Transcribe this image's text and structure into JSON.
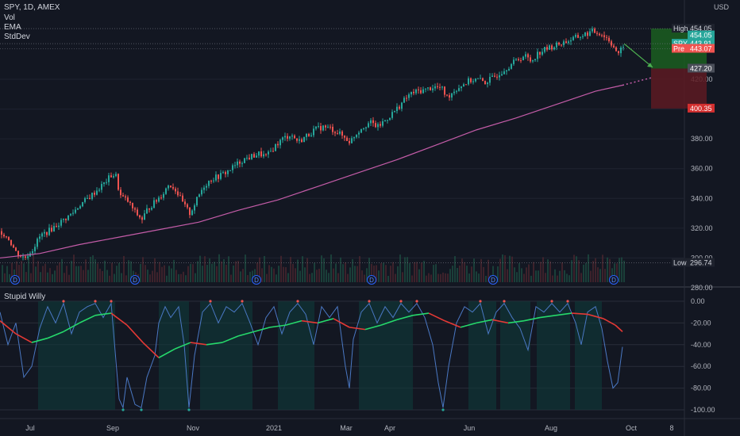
{
  "header": {
    "symbol_line": "SPY, 1D, AMEX",
    "indicators": [
      "Vol",
      "EMA",
      "StdDev"
    ],
    "currency": "USD"
  },
  "price_tags": [
    {
      "label": "High",
      "value": "454.05",
      "bg": "#1e222d",
      "fg": "#d1d4dc",
      "price": 454.05
    },
    {
      "label": "",
      "value": "454.05",
      "bg": "#26a69a",
      "fg": "#ffffff",
      "price": 449.5
    },
    {
      "label": "SPY",
      "value": "443.91",
      "bg": "#26a69a",
      "fg": "#ffffff",
      "price": 443.91
    },
    {
      "label": "Pre",
      "value": "443.07",
      "bg": "#ef5350",
      "fg": "#ffffff",
      "price": 440.5
    },
    {
      "label": "",
      "value": "427.20",
      "bg": "#4a4e59",
      "fg": "#ffffff",
      "price": 427.2
    },
    {
      "label": "",
      "value": "400.35",
      "bg": "#d32f2f",
      "fg": "#ffffff",
      "price": 400.35
    },
    {
      "label": "Low",
      "value": "296.74",
      "bg": "#1e222d",
      "fg": "#d1d4dc",
      "price": 296.74
    }
  ],
  "pane2_title": "Stupid Willy",
  "chart_data": [
    {
      "type": "line",
      "name": "price",
      "y_ticks": [
        "280.00",
        "300.00",
        "320.00",
        "340.00",
        "360.00",
        "380.00",
        "400.00",
        "420.00"
      ],
      "ylim": [
        280,
        460
      ],
      "x_labels": [
        "Jul",
        "Sep",
        "Nov",
        "2021",
        "Mar",
        "Apr",
        "Jun",
        "Aug",
        "Oct",
        "8"
      ],
      "close_path": [
        [
          0,
          318
        ],
        [
          10,
          313
        ],
        [
          20,
          303
        ],
        [
          30,
          300
        ],
        [
          40,
          306
        ],
        [
          50,
          315
        ],
        [
          60,
          318
        ],
        [
          70,
          322
        ],
        [
          80,
          326
        ],
        [
          90,
          330
        ],
        [
          100,
          336
        ],
        [
          110,
          340
        ],
        [
          120,
          345
        ],
        [
          130,
          350
        ],
        [
          140,
          356
        ],
        [
          145,
          355
        ],
        [
          150,
          342
        ],
        [
          160,
          338
        ],
        [
          170,
          330
        ],
        [
          178,
          326
        ],
        [
          185,
          333
        ],
        [
          195,
          338
        ],
        [
          205,
          344
        ],
        [
          212,
          350
        ],
        [
          220,
          346
        ],
        [
          230,
          336
        ],
        [
          238,
          330
        ],
        [
          245,
          337
        ],
        [
          255,
          348
        ],
        [
          265,
          353
        ],
        [
          275,
          355
        ],
        [
          285,
          358
        ],
        [
          295,
          362
        ],
        [
          305,
          366
        ],
        [
          315,
          368
        ],
        [
          325,
          370
        ],
        [
          335,
          368
        ],
        [
          345,
          375
        ],
        [
          355,
          380
        ],
        [
          365,
          383
        ],
        [
          375,
          378
        ],
        [
          385,
          382
        ],
        [
          395,
          386
        ],
        [
          405,
          388
        ],
        [
          415,
          387
        ],
        [
          425,
          384
        ],
        [
          435,
          380
        ],
        [
          440,
          378
        ],
        [
          445,
          382
        ],
        [
          455,
          388
        ],
        [
          465,
          391
        ],
        [
          475,
          388
        ],
        [
          485,
          393
        ],
        [
          495,
          398
        ],
        [
          505,
          404
        ],
        [
          515,
          410
        ],
        [
          525,
          412
        ],
        [
          535,
          413
        ],
        [
          545,
          415
        ],
        [
          555,
          414
        ],
        [
          562,
          408
        ],
        [
          570,
          412
        ],
        [
          580,
          416
        ],
        [
          590,
          419
        ],
        [
          600,
          420
        ],
        [
          610,
          418
        ],
        [
          620,
          421
        ],
        [
          630,
          425
        ],
        [
          640,
          429
        ],
        [
          650,
          433
        ],
        [
          660,
          436
        ],
        [
          668,
          432
        ],
        [
          675,
          437
        ],
        [
          685,
          440
        ],
        [
          695,
          442
        ],
        [
          705,
          444
        ],
        [
          715,
          446
        ],
        [
          725,
          448
        ],
        [
          735,
          450
        ],
        [
          745,
          452
        ],
        [
          755,
          451
        ],
        [
          765,
          447
        ],
        [
          772,
          442
        ],
        [
          778,
          436
        ],
        [
          784,
          443
        ]
      ],
      "ema_path": [
        [
          0,
          300
        ],
        [
          50,
          303
        ],
        [
          100,
          309
        ],
        [
          150,
          314
        ],
        [
          200,
          319
        ],
        [
          250,
          324
        ],
        [
          300,
          332
        ],
        [
          350,
          339
        ],
        [
          400,
          348
        ],
        [
          450,
          357
        ],
        [
          500,
          366
        ],
        [
          550,
          376
        ],
        [
          600,
          386
        ],
        [
          650,
          394
        ],
        [
          700,
          403
        ],
        [
          750,
          412
        ],
        [
          784,
          416
        ]
      ],
      "ema_projection": [
        [
          784,
          416
        ],
        [
          820,
          421
        ]
      ],
      "target_arrow": [
        [
          786,
          443.9
        ],
        [
          822,
          428
        ]
      ],
      "long_box": {
        "x_from": 820,
        "x_to": 890,
        "top": 454.05,
        "entry": 427.2,
        "stop": 400.35
      },
      "dividend_markers": [
        19,
        170,
        323,
        468,
        621,
        773
      ]
    },
    {
      "type": "line",
      "name": "Stupid Willy",
      "y_ticks": [
        "0.00",
        "-20.00",
        "-40.00",
        "-60.00",
        "-80.00",
        "-100.00"
      ],
      "ylim": [
        -105,
        5
      ],
      "fast_path": [
        [
          0,
          -10
        ],
        [
          10,
          -40
        ],
        [
          20,
          -20
        ],
        [
          30,
          -70
        ],
        [
          40,
          -60
        ],
        [
          50,
          -25
        ],
        [
          60,
          -5
        ],
        [
          70,
          -20
        ],
        [
          80,
          -2
        ],
        [
          90,
          -30
        ],
        [
          100,
          -10
        ],
        [
          110,
          -5
        ],
        [
          120,
          -2
        ],
        [
          130,
          -15
        ],
        [
          140,
          -2
        ],
        [
          150,
          -90
        ],
        [
          155,
          -98
        ],
        [
          160,
          -70
        ],
        [
          170,
          -95
        ],
        [
          178,
          -98
        ],
        [
          185,
          -70
        ],
        [
          195,
          -50
        ],
        [
          200,
          -20
        ],
        [
          208,
          -5
        ],
        [
          215,
          -15
        ],
        [
          225,
          -5
        ],
        [
          232,
          -40
        ],
        [
          238,
          -98
        ],
        [
          245,
          -50
        ],
        [
          255,
          -10
        ],
        [
          265,
          -2
        ],
        [
          275,
          -20
        ],
        [
          285,
          -5
        ],
        [
          295,
          -10
        ],
        [
          305,
          -2
        ],
        [
          315,
          -20
        ],
        [
          325,
          -40
        ],
        [
          335,
          -15
        ],
        [
          345,
          -5
        ],
        [
          355,
          -30
        ],
        [
          365,
          -10
        ],
        [
          375,
          -2
        ],
        [
          385,
          -12
        ],
        [
          395,
          -40
        ],
        [
          405,
          -5
        ],
        [
          415,
          -15
        ],
        [
          425,
          -5
        ],
        [
          435,
          -60
        ],
        [
          440,
          -80
        ],
        [
          445,
          -35
        ],
        [
          455,
          -10
        ],
        [
          465,
          -2
        ],
        [
          475,
          -20
        ],
        [
          485,
          -5
        ],
        [
          495,
          -15
        ],
        [
          505,
          -2
        ],
        [
          515,
          -10
        ],
        [
          525,
          -2
        ],
        [
          535,
          -15
        ],
        [
          545,
          -40
        ],
        [
          552,
          -75
        ],
        [
          558,
          -98
        ],
        [
          565,
          -60
        ],
        [
          575,
          -20
        ],
        [
          585,
          -5
        ],
        [
          595,
          -10
        ],
        [
          605,
          -2
        ],
        [
          615,
          -30
        ],
        [
          625,
          -10
        ],
        [
          635,
          -2
        ],
        [
          645,
          -15
        ],
        [
          655,
          -25
        ],
        [
          665,
          -45
        ],
        [
          675,
          -5
        ],
        [
          685,
          -10
        ],
        [
          695,
          -2
        ],
        [
          705,
          -10
        ],
        [
          715,
          -2
        ],
        [
          725,
          -20
        ],
        [
          732,
          -40
        ],
        [
          740,
          -10
        ],
        [
          750,
          -5
        ],
        [
          758,
          -25
        ],
        [
          765,
          -55
        ],
        [
          772,
          -80
        ],
        [
          778,
          -75
        ],
        [
          784,
          -42
        ]
      ],
      "slow_path": [
        [
          0,
          -18
        ],
        [
          20,
          -30
        ],
        [
          40,
          -38
        ],
        [
          60,
          -34
        ],
        [
          80,
          -28
        ],
        [
          100,
          -20
        ],
        [
          120,
          -13
        ],
        [
          140,
          -11
        ],
        [
          160,
          -22
        ],
        [
          180,
          -38
        ],
        [
          200,
          -52
        ],
        [
          220,
          -44
        ],
        [
          240,
          -38
        ],
        [
          260,
          -40
        ],
        [
          280,
          -38
        ],
        [
          300,
          -32
        ],
        [
          320,
          -28
        ],
        [
          340,
          -24
        ],
        [
          360,
          -22
        ],
        [
          380,
          -18
        ],
        [
          400,
          -20
        ],
        [
          420,
          -16
        ],
        [
          440,
          -24
        ],
        [
          460,
          -26
        ],
        [
          480,
          -22
        ],
        [
          500,
          -17
        ],
        [
          520,
          -13
        ],
        [
          540,
          -11
        ],
        [
          560,
          -18
        ],
        [
          580,
          -24
        ],
        [
          600,
          -20
        ],
        [
          620,
          -17
        ],
        [
          640,
          -20
        ],
        [
          660,
          -18
        ],
        [
          680,
          -15
        ],
        [
          700,
          -13
        ],
        [
          720,
          -11
        ],
        [
          740,
          -12
        ],
        [
          760,
          -16
        ],
        [
          775,
          -22
        ],
        [
          784,
          -28
        ]
      ],
      "shaded_ranges": [
        [
          48,
          145
        ],
        [
          200,
          238
        ],
        [
          252,
          318
        ],
        [
          350,
          396
        ],
        [
          452,
          520
        ],
        [
          590,
          625
        ],
        [
          630,
          668
        ],
        [
          676,
          718
        ],
        [
          724,
          758
        ]
      ]
    }
  ]
}
